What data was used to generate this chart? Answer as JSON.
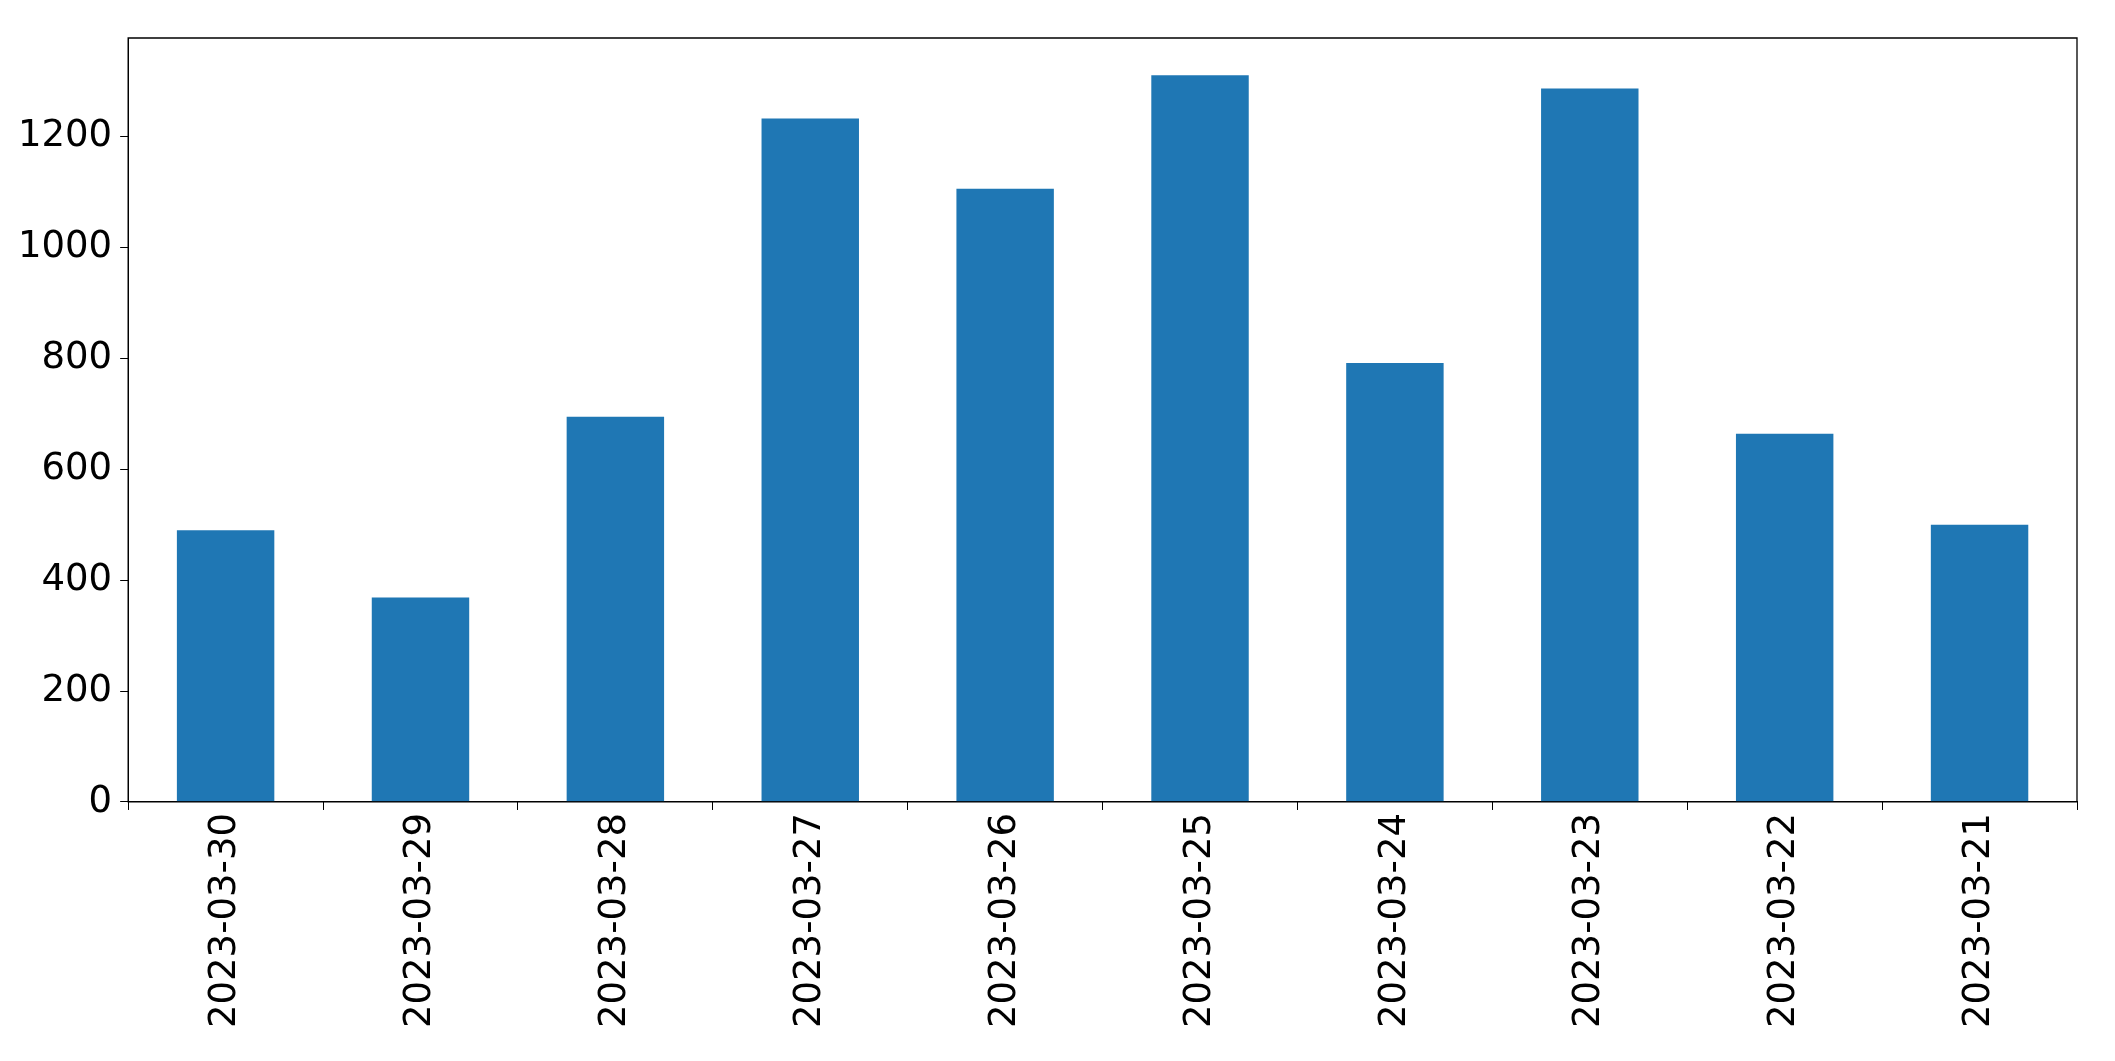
{
  "chart_data": {
    "type": "bar",
    "categories": [
      "2023-03-30",
      "2023-03-29",
      "2023-03-28",
      "2023-03-27",
      "2023-03-26",
      "2023-03-25",
      "2023-03-24",
      "2023-03-23",
      "2023-03-22",
      "2023-03-21"
    ],
    "values": [
      490,
      369,
      695,
      1233,
      1106,
      1311,
      792,
      1287,
      664,
      500
    ],
    "color": "#1f77b4",
    "ylim": [
      0,
      1378
    ],
    "yticks": [
      0,
      200,
      400,
      600,
      800,
      1000,
      1200
    ],
    "grid": false,
    "legend": false
  }
}
